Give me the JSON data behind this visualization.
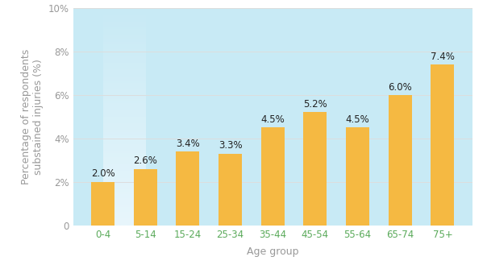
{
  "categories": [
    "0-4",
    "5-14",
    "15-24",
    "25-34",
    "35-44",
    "45-54",
    "55-64",
    "65-74",
    "75+"
  ],
  "values": [
    2.0,
    2.6,
    3.4,
    3.3,
    4.5,
    5.2,
    4.5,
    6.0,
    7.4
  ],
  "bar_color": "#F5B942",
  "bar_edge_color": "none",
  "background_color": "#FFFFFF",
  "plot_bg_top": "#C8EAF5",
  "plot_bg_bottom": "#E8F6FC",
  "ylabel": "Percentage of respondents\nsubstained injuries (%)",
  "xlabel": "Age group",
  "ylim": [
    0,
    10
  ],
  "ytick_labels": [
    "0",
    "2%",
    "4%",
    "6%",
    "8%",
    "10%"
  ],
  "ytick_values": [
    0,
    2,
    4,
    6,
    8,
    10
  ],
  "grid_color": "#DDDDDD",
  "label_color": "#222222",
  "xtick_label_color": "#5aaa5a",
  "ytick_label_color": "#999999",
  "axis_label_color": "#999999",
  "label_fontsize": 8.5,
  "tick_fontsize": 8.5,
  "axis_label_fontsize": 9
}
